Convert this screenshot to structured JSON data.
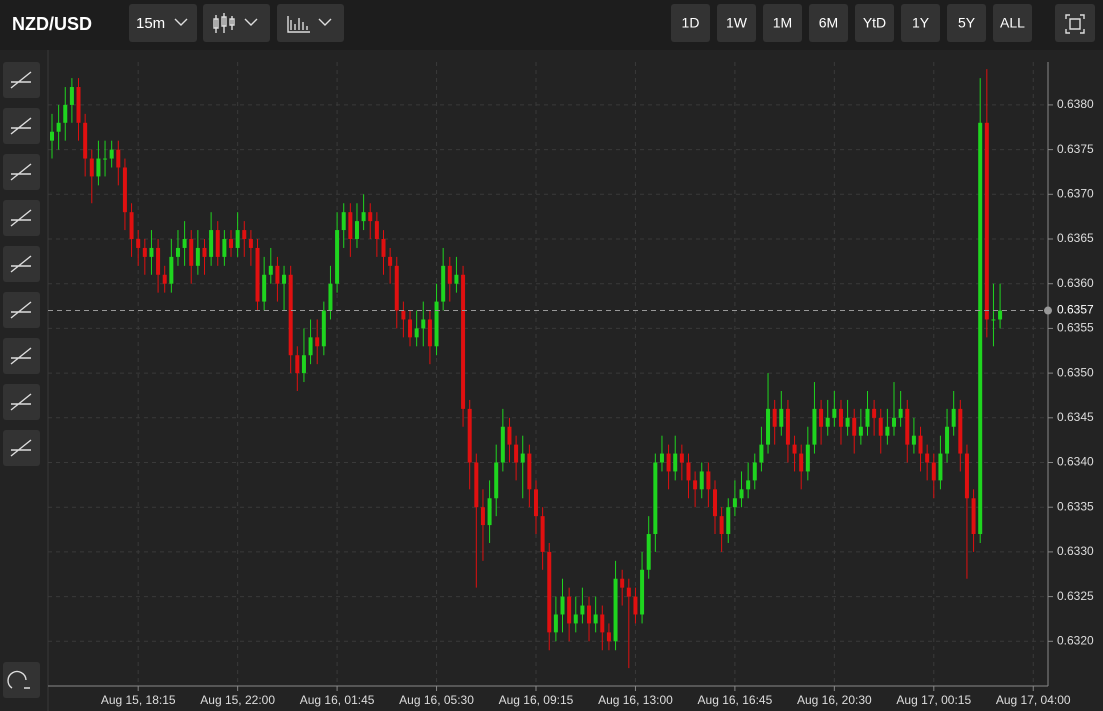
{
  "toolbar": {
    "symbol": "NZD/USD",
    "interval": "15m",
    "ranges": [
      "1D",
      "1W",
      "1M",
      "6M",
      "YtD",
      "1Y",
      "5Y",
      "ALL"
    ]
  },
  "chart_data": {
    "type": "candlestick",
    "up_color": "#1fd51f",
    "down_color": "#e01010",
    "grid": true,
    "categories": [
      null,
      null,
      null,
      null,
      null,
      null,
      null,
      null,
      null,
      null,
      null,
      null,
      null,
      "Aug 15, 18:15",
      null,
      null,
      null,
      null,
      null,
      null,
      null,
      null,
      null,
      null,
      null,
      null,
      null,
      null,
      "Aug 15, 22:00",
      null,
      null,
      null,
      null,
      null,
      null,
      null,
      null,
      null,
      null,
      null,
      null,
      null,
      null,
      "Aug 16, 01:45",
      null,
      null,
      null,
      null,
      null,
      null,
      null,
      null,
      null,
      null,
      null,
      null,
      null,
      null,
      "Aug 16, 05:30",
      null,
      null,
      null,
      null,
      null,
      null,
      null,
      null,
      null,
      null,
      null,
      null,
      null,
      null,
      "Aug 16, 09:15",
      null,
      null,
      null,
      null,
      null,
      null,
      null,
      null,
      null,
      null,
      null,
      null,
      null,
      null,
      "Aug 16, 13:00",
      null,
      null,
      null,
      null,
      null,
      null,
      null,
      null,
      null,
      null,
      null,
      null,
      null,
      null,
      "Aug 16, 16:45",
      null,
      null,
      null,
      null,
      null,
      null,
      null,
      null,
      null,
      null,
      null,
      null,
      null,
      null,
      "Aug 16, 20:30",
      null,
      null,
      null,
      null,
      null,
      null,
      null,
      null,
      null,
      null,
      null,
      null,
      null,
      null,
      "Aug 17, 00:15",
      null,
      null,
      null,
      null,
      null,
      null,
      null,
      null,
      null,
      null,
      null,
      null,
      null,
      null,
      "Aug 17, 04:00"
    ],
    "open": [
      0.6376,
      0.6377,
      0.6378,
      0.638,
      0.6382,
      0.6378,
      0.6374,
      0.6372,
      0.6374,
      0.6374,
      0.6375,
      0.6373,
      0.6368,
      0.6365,
      0.6364,
      0.6363,
      0.6364,
      0.6361,
      0.636,
      0.6363,
      0.6364,
      0.6365,
      0.6362,
      0.6364,
      0.6363,
      0.6366,
      0.6363,
      0.6365,
      0.6364,
      0.6366,
      0.6365,
      0.6364,
      0.6358,
      0.6361,
      0.6362,
      0.636,
      0.6361,
      0.6352,
      0.635,
      0.6352,
      0.6354,
      0.6353,
      0.6357,
      0.636,
      0.6366,
      0.6368,
      0.6365,
      0.6367,
      0.6368,
      0.6367,
      0.6365,
      0.6363,
      0.6362,
      0.6357,
      0.6356,
      0.6354,
      0.6355,
      0.6356,
      0.6353,
      0.6358,
      0.6362,
      0.636,
      0.6361,
      0.6346,
      0.634,
      0.6335,
      0.6333,
      0.6336,
      0.634,
      0.6344,
      0.6342,
      0.634,
      0.6341,
      0.6337,
      0.6334,
      0.633,
      0.6321,
      0.6323,
      0.6325,
      0.6322,
      0.6323,
      0.6324,
      0.6322,
      0.6323,
      0.6321,
      0.632,
      0.6327,
      0.6326,
      0.6325,
      0.6323,
      0.6328,
      0.6332,
      0.634,
      0.6341,
      0.6339,
      0.6341,
      0.634,
      0.6338,
      0.6337,
      0.6339,
      0.6337,
      0.6334,
      0.6332,
      0.6335,
      0.6336,
      0.6337,
      0.6338,
      0.634,
      0.6342,
      0.6346,
      0.6344,
      0.6346,
      0.6342,
      0.6341,
      0.6339,
      0.6342,
      0.6346,
      0.6344,
      0.6345,
      0.6346,
      0.6344,
      0.6345,
      0.6343,
      0.6344,
      0.6346,
      0.6345,
      0.6343,
      0.6344,
      0.6345,
      0.6346,
      0.6342,
      0.6343,
      0.6341,
      0.634,
      0.6338,
      0.6341,
      0.6344,
      0.6346,
      0.6341,
      0.6336,
      0.6332,
      0.6378,
      0.6356,
      0.6356,
      null,
      null,
      null,
      null,
      null
    ],
    "high": [
      0.6379,
      0.638,
      0.6382,
      0.6383,
      0.6383,
      0.6379,
      0.6375,
      0.6376,
      0.6376,
      0.6376,
      0.6376,
      0.6374,
      0.6369,
      0.6366,
      0.6365,
      0.6366,
      0.6365,
      0.6362,
      0.6365,
      0.6366,
      0.6367,
      0.6366,
      0.6366,
      0.6365,
      0.6368,
      0.6367,
      0.6366,
      0.6366,
      0.6368,
      0.6367,
      0.6366,
      0.6365,
      0.6363,
      0.6364,
      0.6363,
      0.6362,
      0.6362,
      0.6353,
      0.6355,
      0.6356,
      0.6356,
      0.6358,
      0.6362,
      0.6368,
      0.6369,
      0.6369,
      0.6369,
      0.637,
      0.6369,
      0.6368,
      0.6366,
      0.6364,
      0.6363,
      0.6358,
      0.6357,
      0.6357,
      0.6358,
      0.6357,
      0.636,
      0.6364,
      0.6363,
      0.6363,
      0.6362,
      0.6347,
      0.6341,
      0.6337,
      0.6338,
      0.6342,
      0.6346,
      0.6345,
      0.6343,
      0.6343,
      0.6342,
      0.6338,
      0.6335,
      0.6331,
      0.6325,
      0.6327,
      0.6326,
      0.6325,
      0.6326,
      0.6325,
      0.6325,
      0.6324,
      0.6322,
      0.6329,
      0.6328,
      0.6327,
      0.6326,
      0.633,
      0.6334,
      0.6341,
      0.6343,
      0.6342,
      0.6343,
      0.6342,
      0.6341,
      0.6339,
      0.634,
      0.634,
      0.6338,
      0.6335,
      0.6336,
      0.6338,
      0.6339,
      0.634,
      0.6341,
      0.6344,
      0.635,
      0.6347,
      0.6348,
      0.6347,
      0.6343,
      0.6342,
      0.6344,
      0.6349,
      0.6347,
      0.6347,
      0.6348,
      0.6347,
      0.6347,
      0.6346,
      0.6346,
      0.6348,
      0.6347,
      0.6346,
      0.6346,
      0.6349,
      0.6348,
      0.6347,
      0.6345,
      0.6344,
      0.6342,
      0.6341,
      0.6343,
      0.6346,
      0.6348,
      0.6347,
      0.6342,
      0.6337,
      0.6383,
      0.6384,
      0.636,
      0.636,
      null,
      null,
      null,
      null,
      null
    ],
    "low": [
      0.6374,
      0.6375,
      0.6376,
      0.6378,
      0.6376,
      0.6372,
      0.6369,
      0.6371,
      0.6372,
      0.6373,
      0.6371,
      0.6366,
      0.6363,
      0.6362,
      0.6361,
      0.6361,
      0.6359,
      0.6359,
      0.6359,
      0.6362,
      0.6362,
      0.636,
      0.6361,
      0.6361,
      0.6362,
      0.6362,
      0.6362,
      0.6363,
      0.6363,
      0.6363,
      0.6362,
      0.6357,
      0.6357,
      0.636,
      0.6358,
      0.6357,
      0.635,
      0.6348,
      0.6349,
      0.6351,
      0.6351,
      0.6352,
      0.6356,
      0.6359,
      0.6364,
      0.6363,
      0.6364,
      0.6366,
      0.6365,
      0.6363,
      0.6361,
      0.636,
      0.6355,
      0.6354,
      0.6353,
      0.6353,
      0.6353,
      0.6351,
      0.6352,
      0.6357,
      0.6358,
      0.6359,
      0.6344,
      0.6337,
      0.6326,
      0.6329,
      0.6331,
      0.6334,
      0.6339,
      0.634,
      0.6338,
      0.6336,
      0.6335,
      0.6332,
      0.6328,
      0.6319,
      0.632,
      0.6321,
      0.632,
      0.6321,
      0.6322,
      0.632,
      0.6321,
      0.6319,
      0.6319,
      0.6319,
      0.6324,
      0.6317,
      0.6322,
      0.6322,
      0.6327,
      0.633,
      0.6339,
      0.6337,
      0.6338,
      0.6338,
      0.6336,
      0.6335,
      0.6336,
      0.6335,
      0.6332,
      0.633,
      0.6331,
      0.6334,
      0.6335,
      0.6336,
      0.6337,
      0.6339,
      0.6341,
      0.6342,
      0.6343,
      0.634,
      0.6339,
      0.6337,
      0.6338,
      0.6341,
      0.6342,
      0.6343,
      0.6344,
      0.6342,
      0.6343,
      0.6341,
      0.6342,
      0.6343,
      0.6343,
      0.6341,
      0.6342,
      0.6343,
      0.6344,
      0.634,
      0.6341,
      0.6339,
      0.6338,
      0.6336,
      0.6337,
      0.634,
      0.6343,
      0.6339,
      0.6327,
      0.633,
      0.6331,
      0.6354,
      0.6353,
      0.6355,
      null,
      null,
      null,
      null,
      null
    ],
    "close": [
      0.6377,
      0.6378,
      0.638,
      0.6382,
      0.6378,
      0.6374,
      0.6372,
      0.6374,
      0.6374,
      0.6375,
      0.6373,
      0.6368,
      0.6365,
      0.6364,
      0.6363,
      0.6364,
      0.6361,
      0.636,
      0.6363,
      0.6364,
      0.6365,
      0.6362,
      0.6364,
      0.6363,
      0.6366,
      0.6363,
      0.6365,
      0.6364,
      0.6366,
      0.6365,
      0.6364,
      0.6358,
      0.6361,
      0.6362,
      0.636,
      0.6361,
      0.6352,
      0.635,
      0.6352,
      0.6354,
      0.6353,
      0.6357,
      0.636,
      0.6366,
      0.6368,
      0.6365,
      0.6367,
      0.6368,
      0.6367,
      0.6365,
      0.6363,
      0.6362,
      0.6357,
      0.6356,
      0.6354,
      0.6355,
      0.6356,
      0.6353,
      0.6358,
      0.6362,
      0.636,
      0.6361,
      0.6346,
      0.634,
      0.6335,
      0.6333,
      0.6336,
      0.634,
      0.6344,
      0.6342,
      0.634,
      0.6341,
      0.6337,
      0.6334,
      0.633,
      0.6321,
      0.6323,
      0.6325,
      0.6322,
      0.6323,
      0.6324,
      0.6322,
      0.6323,
      0.6321,
      0.632,
      0.6327,
      0.6326,
      0.6325,
      0.6323,
      0.6328,
      0.6332,
      0.634,
      0.6341,
      0.6339,
      0.6341,
      0.634,
      0.6338,
      0.6337,
      0.6339,
      0.6337,
      0.6334,
      0.6332,
      0.6335,
      0.6336,
      0.6337,
      0.6338,
      0.634,
      0.6342,
      0.6346,
      0.6344,
      0.6346,
      0.6342,
      0.6341,
      0.6339,
      0.6342,
      0.6346,
      0.6344,
      0.6345,
      0.6346,
      0.6344,
      0.6345,
      0.6343,
      0.6344,
      0.6346,
      0.6345,
      0.6343,
      0.6344,
      0.6345,
      0.6346,
      0.6342,
      0.6343,
      0.6341,
      0.634,
      0.6338,
      0.6341,
      0.6344,
      0.6346,
      0.6341,
      0.6336,
      0.6332,
      0.6378,
      0.6356,
      0.6356,
      0.6357,
      null,
      null,
      null,
      null,
      null
    ],
    "current_price": 0.6357,
    "ylim": [
      0.6315,
      0.63848
    ],
    "yticks": [
      {
        "value": 0.632,
        "label": "0.6320"
      },
      {
        "value": 0.6325,
        "label": "0.6325"
      },
      {
        "value": 0.633,
        "label": "0.6330"
      },
      {
        "value": 0.6335,
        "label": "0.6335"
      },
      {
        "value": 0.634,
        "label": "0.6340"
      },
      {
        "value": 0.6345,
        "label": "0.6345"
      },
      {
        "value": 0.635,
        "label": "0.6350"
      },
      {
        "value": 0.6355,
        "label": "0.6355"
      },
      {
        "value": 0.636,
        "label": "0.6360"
      },
      {
        "value": 0.6365,
        "label": "0.6365"
      },
      {
        "value": 0.637,
        "label": "0.6370"
      },
      {
        "value": 0.6375,
        "label": "0.6375"
      },
      {
        "value": 0.638,
        "label": "0.6380"
      }
    ]
  }
}
